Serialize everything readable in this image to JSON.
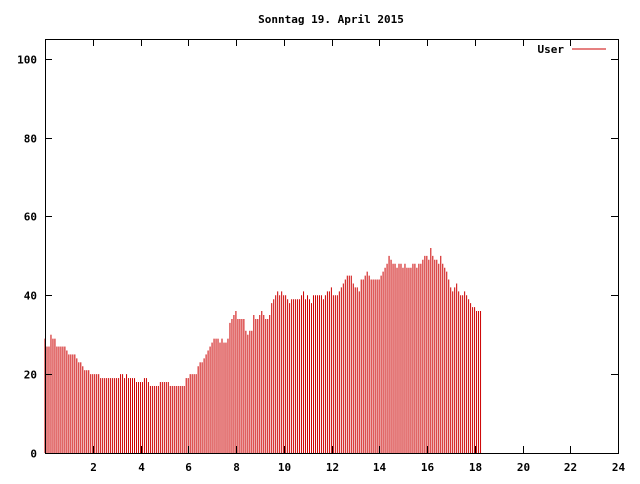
{
  "chart_data": {
    "type": "bar",
    "title": "Sonntag 19. April 2015",
    "xlabel": "",
    "ylabel": "",
    "xlim": [
      0,
      24
    ],
    "ylim": [
      0,
      105
    ],
    "x_ticks": [
      "2",
      "4",
      "6",
      "8",
      "10",
      "12",
      "14",
      "16",
      "18",
      "20",
      "22",
      "24"
    ],
    "y_ticks": [
      "0",
      "20",
      "40",
      "60",
      "80",
      "100"
    ],
    "grid": false,
    "legend": "top-right",
    "series": [
      {
        "name": "User",
        "color": "#cc0000",
        "x_start": 0,
        "x_step": 0.0833,
        "values": [
          29,
          27,
          27,
          30,
          29,
          29,
          27,
          27,
          27,
          27,
          27,
          26,
          25,
          25,
          25,
          25,
          24,
          23,
          23,
          22,
          21,
          21,
          21,
          20,
          20,
          20,
          20,
          20,
          19,
          19,
          19,
          19,
          19,
          19,
          19,
          19,
          19,
          19,
          20,
          20,
          19,
          20,
          19,
          19,
          19,
          19,
          18,
          18,
          18,
          18,
          19,
          19,
          18,
          17,
          17,
          17,
          17,
          17,
          18,
          18,
          18,
          18,
          18,
          17,
          17,
          17,
          17,
          17,
          17,
          17,
          17,
          19,
          19,
          20,
          20,
          20,
          20,
          22,
          23,
          23,
          24,
          25,
          26,
          27,
          28,
          29,
          29,
          29,
          28,
          29,
          28,
          28,
          29,
          33,
          34,
          35,
          36,
          34,
          34,
          34,
          34,
          31,
          30,
          31,
          31,
          35,
          34,
          34,
          35,
          36,
          35,
          34,
          34,
          35,
          38,
          39,
          40,
          41,
          40,
          41,
          40,
          40,
          39,
          38,
          39,
          39,
          39,
          39,
          39,
          40,
          41,
          39,
          40,
          39,
          38,
          40,
          40,
          40,
          40,
          40,
          39,
          40,
          41,
          41,
          42,
          40,
          40,
          40,
          41,
          42,
          43,
          44,
          45,
          45,
          45,
          43,
          42,
          42,
          41,
          44,
          44,
          45,
          46,
          45,
          44,
          44,
          44,
          44,
          44,
          45,
          46,
          47,
          48,
          50,
          49,
          48,
          48,
          47,
          48,
          48,
          47,
          48,
          47,
          47,
          47,
          48,
          48,
          47,
          48,
          48,
          49,
          50,
          50,
          49,
          52,
          50,
          49,
          49,
          48,
          50,
          48,
          47,
          46,
          44,
          42,
          41,
          42,
          43,
          41,
          40,
          40,
          41,
          40,
          39,
          38,
          37,
          37,
          36,
          36,
          36
        ]
      }
    ]
  }
}
